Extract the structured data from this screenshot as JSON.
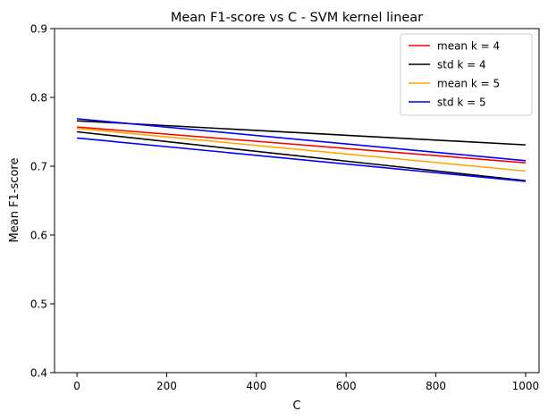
{
  "chart_data": {
    "type": "line",
    "title": "Mean F1-score vs C - SVM kernel linear",
    "xlabel": "C",
    "ylabel": "Mean F1-score",
    "xlim": [
      -50,
      1030
    ],
    "ylim": [
      0.4,
      0.9
    ],
    "xticks": [
      0,
      200,
      400,
      600,
      800,
      1000
    ],
    "yticks": [
      0.4,
      0.5,
      0.6,
      0.7,
      0.8,
      0.9
    ],
    "xtick_labels": [
      "0",
      "200",
      "400",
      "600",
      "800",
      "1000"
    ],
    "ytick_labels": [
      "0.4",
      "0.5",
      "0.6",
      "0.7",
      "0.8",
      "0.9"
    ],
    "grid": false,
    "legend_position": "top-right",
    "x": [
      0.001,
      1000
    ],
    "series": [
      {
        "name": "mean k = 4",
        "color": "#ff0000",
        "values": [
          0.757,
          0.705
        ]
      },
      {
        "name": "std k = 4",
        "color": "#000000",
        "values": [
          0.766,
          0.731
        ]
      },
      {
        "name": "mean k = 5",
        "color": "#ffa500",
        "values": [
          0.755,
          0.693
        ]
      },
      {
        "name": "std k = 5",
        "color": "#0000ff",
        "values": [
          0.769,
          0.708
        ]
      },
      {
        "name": "",
        "color": "#000000",
        "values": [
          0.75,
          0.679
        ]
      },
      {
        "name": "",
        "color": "#0000ff",
        "values": [
          0.741,
          0.678
        ]
      }
    ]
  }
}
